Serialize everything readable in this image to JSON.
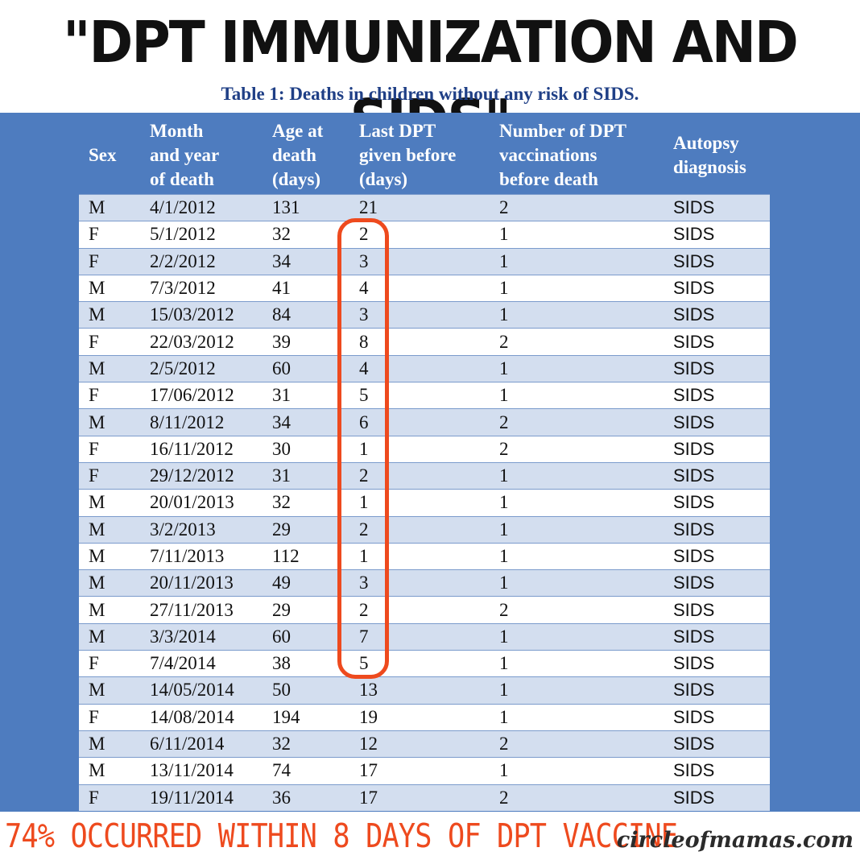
{
  "headline": "\"DPT IMMUNIZATION AND SIDS\"",
  "caption": "Table 1: Deaths in children without any risk of SIDS.",
  "table": {
    "headers": [
      [
        "Sex"
      ],
      [
        "Month",
        "and year",
        "of death"
      ],
      [
        "Age at",
        "death",
        "(days)"
      ],
      [
        "Last DPT",
        "given before",
        "(days)"
      ],
      [
        "Number of DPT",
        "vaccinations",
        "before death"
      ],
      [
        "Autopsy",
        "diagnosis"
      ]
    ],
    "rows": [
      [
        "M",
        "4/1/2012",
        "131",
        "21",
        "2",
        "SIDS"
      ],
      [
        "F",
        "5/1/2012",
        "32",
        "2",
        "1",
        "SIDS"
      ],
      [
        "F",
        "2/2/2012",
        "34",
        "3",
        "1",
        "SIDS"
      ],
      [
        "M",
        "7/3/2012",
        "41",
        "4",
        "1",
        "SIDS"
      ],
      [
        "M",
        "15/03/2012",
        "84",
        "3",
        "1",
        "SIDS"
      ],
      [
        "F",
        "22/03/2012",
        "39",
        "8",
        "2",
        "SIDS"
      ],
      [
        "M",
        "2/5/2012",
        "60",
        "4",
        "1",
        "SIDS"
      ],
      [
        "F",
        "17/06/2012",
        "31",
        "5",
        "1",
        "SIDS"
      ],
      [
        "M",
        "8/11/2012",
        "34",
        "6",
        "2",
        "SIDS"
      ],
      [
        "F",
        "16/11/2012",
        "30",
        "1",
        "2",
        "SIDS"
      ],
      [
        "F",
        "29/12/2012",
        "31",
        "2",
        "1",
        "SIDS"
      ],
      [
        "M",
        "20/01/2013",
        "32",
        "1",
        "1",
        "SIDS"
      ],
      [
        "M",
        "3/2/2013",
        "29",
        "2",
        "1",
        "SIDS"
      ],
      [
        "M",
        "7/11/2013",
        "112",
        "1",
        "1",
        "SIDS"
      ],
      [
        "M",
        "20/11/2013",
        "49",
        "3",
        "1",
        "SIDS"
      ],
      [
        "M",
        "27/11/2013",
        "29",
        "2",
        "2",
        "SIDS"
      ],
      [
        "M",
        "3/3/2014",
        "60",
        "7",
        "1",
        "SIDS"
      ],
      [
        "F",
        "7/4/2014",
        "38",
        "5",
        "1",
        "SIDS"
      ],
      [
        "M",
        "14/05/2014",
        "50",
        "13",
        "1",
        "SIDS"
      ],
      [
        "F",
        "14/08/2014",
        "194",
        "19",
        "1",
        "SIDS"
      ],
      [
        "M",
        "6/11/2014",
        "32",
        "12",
        "2",
        "SIDS"
      ],
      [
        "M",
        "13/11/2014",
        "74",
        "17",
        "1",
        "SIDS"
      ],
      [
        "F",
        "19/11/2014",
        "36",
        "17",
        "2",
        "SIDS"
      ]
    ]
  },
  "footer": "74% OCCURRED WITHIN 8 DAYS OF DPT VACCINE",
  "watermark": "circleofmamas.com",
  "colors": {
    "accent_blue": "#4e7cbf",
    "row_stripe": "#d3deef",
    "caption_blue": "#1f3f86",
    "highlight_orange": "#ee4a1e"
  }
}
